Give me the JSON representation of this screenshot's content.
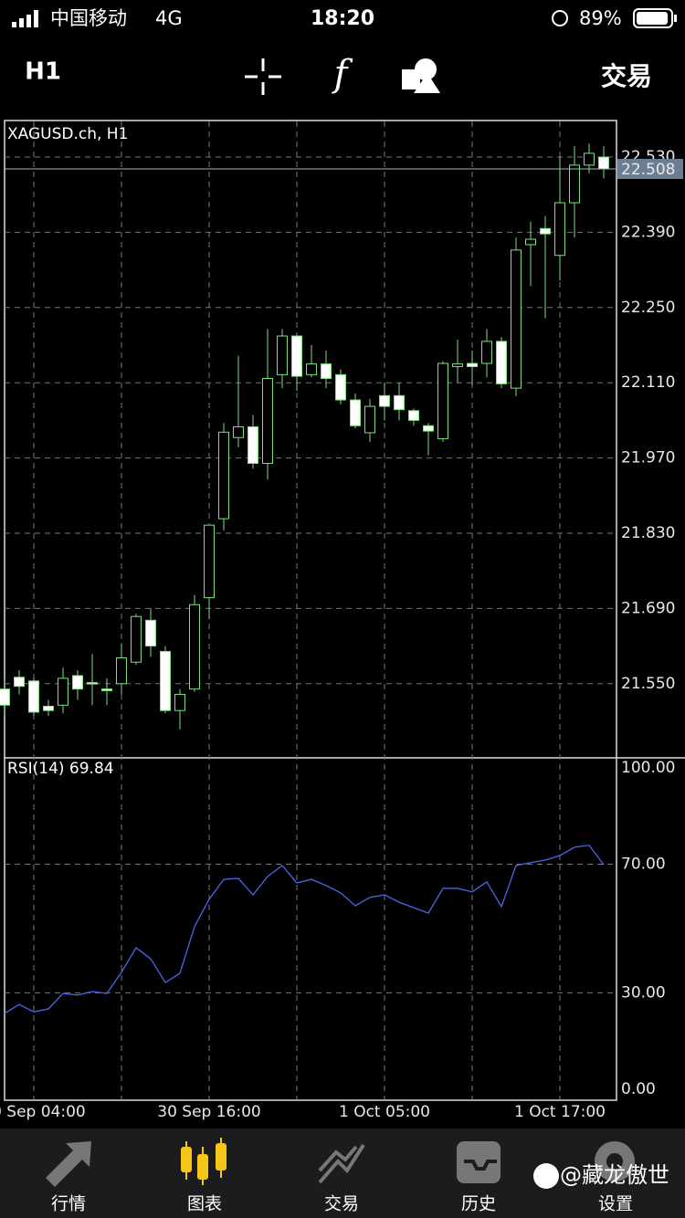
{
  "status_bar": {
    "carrier": "中国移动",
    "network": "4G",
    "time": "18:20",
    "battery": "89%"
  },
  "toolbar": {
    "timeframe": "H1",
    "trade": "交易"
  },
  "chart_data": [
    {
      "type": "candlestick",
      "title": "XAGUSD.ch, H1",
      "categories": [
        null,
        null,
        "30 Sep 04:00",
        null,
        null,
        null,
        null,
        null,
        null,
        null,
        null,
        null,
        null,
        null,
        "30 Sep 16:00",
        null,
        null,
        null,
        null,
        null,
        null,
        null,
        null,
        null,
        null,
        null,
        "1 Oct 05:00",
        null,
        null,
        null,
        null,
        null,
        null,
        null,
        null,
        null,
        null,
        null,
        "1 Oct 17:00",
        null,
        null,
        null
      ],
      "open": [
        21.54,
        21.562,
        21.555,
        21.508,
        21.51,
        21.565,
        21.552,
        21.54,
        21.55,
        21.59,
        21.668,
        21.61,
        21.5,
        21.54,
        21.71,
        21.857,
        22.008,
        22.028,
        21.96,
        22.125,
        22.197,
        22.125,
        22.145,
        22.125,
        22.078,
        22.017,
        22.086,
        22.086,
        22.058,
        22.03,
        22.006,
        22.14,
        22.146,
        22.146,
        22.187,
        22.1,
        22.367,
        22.397,
        22.347,
        22.445,
        22.515,
        22.53
      ],
      "high": [
        21.56,
        21.575,
        21.56,
        21.52,
        21.58,
        21.575,
        21.605,
        21.56,
        21.625,
        21.68,
        21.69,
        21.62,
        21.54,
        21.715,
        21.845,
        22.035,
        22.16,
        22.05,
        22.21,
        22.21,
        22.2,
        22.18,
        22.17,
        22.135,
        22.09,
        22.08,
        22.11,
        22.11,
        22.062,
        22.035,
        22.15,
        22.19,
        22.17,
        22.21,
        22.195,
        22.38,
        22.41,
        22.42,
        22.53,
        22.55,
        22.555,
        22.55
      ],
      "low": [
        21.49,
        21.53,
        21.49,
        21.49,
        21.495,
        21.52,
        21.51,
        21.51,
        21.53,
        21.585,
        21.6,
        21.495,
        21.465,
        21.535,
        21.67,
        21.835,
        21.99,
        21.95,
        21.93,
        22.1,
        22.095,
        22.12,
        22.1,
        22.07,
        22.025,
        22.0,
        22.04,
        22.04,
        22.03,
        21.975,
        22.0,
        22.11,
        22.105,
        22.12,
        22.1,
        22.085,
        22.29,
        22.23,
        22.3,
        22.38,
        22.5,
        22.49
      ],
      "close": [
        21.51,
        21.545,
        21.497,
        21.5,
        21.56,
        21.54,
        21.55,
        21.537,
        21.598,
        21.675,
        21.62,
        21.5,
        21.53,
        21.697,
        21.845,
        22.018,
        22.028,
        21.96,
        22.118,
        22.197,
        22.122,
        22.145,
        22.118,
        22.078,
        22.03,
        22.066,
        22.066,
        22.06,
        22.04,
        22.02,
        22.146,
        22.145,
        22.14,
        22.187,
        22.108,
        22.357,
        22.377,
        22.387,
        22.445,
        22.515,
        22.537,
        22.508
      ],
      "ylim": [
        21.412,
        22.598
      ],
      "yticks": [
        {
          "value": 22.53,
          "label": "22.530"
        },
        {
          "value": 22.39,
          "label": "22.390"
        },
        {
          "value": 22.25,
          "label": "22.250"
        },
        {
          "value": 22.11,
          "label": "22.110"
        },
        {
          "value": 21.97,
          "label": "21.970"
        },
        {
          "value": 21.83,
          "label": "21.830"
        },
        {
          "value": 21.69,
          "label": "21.690"
        },
        {
          "value": 21.55,
          "label": "21.550"
        }
      ],
      "last_price": 22.508,
      "grid": true,
      "up_color": "#000000",
      "down_color": "#ffffff",
      "wick_color": "#7ee07e"
    },
    {
      "type": "line",
      "title": "RSI(14) 69.84",
      "series": [
        {
          "color": "#4a68e8",
          "values": [
            23.6,
            26.4,
            24.1,
            25.0,
            29.8,
            29.3,
            30.4,
            29.8,
            36.4,
            44.0,
            40.6,
            33.2,
            36.1,
            50.6,
            59.1,
            65.3,
            65.6,
            60.5,
            66.2,
            69.6,
            64.2,
            65.3,
            63.4,
            61.1,
            57.1,
            59.7,
            60.5,
            58.2,
            56.5,
            54.8,
            62.5,
            62.5,
            61.4,
            64.5,
            56.8,
            69.6,
            70.5,
            71.3,
            72.7,
            75.3,
            75.9,
            69.84
          ]
        }
      ],
      "ylim": [
        -3.4,
        103.1
      ],
      "yticks": [
        {
          "value": 100,
          "label": "100.00"
        },
        {
          "value": 70,
          "label": "70.00"
        },
        {
          "value": 30,
          "label": "30.00"
        },
        {
          "value": 0,
          "label": "0.00"
        }
      ],
      "levels": [
        70,
        30
      ]
    }
  ],
  "tab_bar": {
    "tabs": [
      "行情",
      "图表",
      "交易",
      "历史",
      "设置"
    ],
    "active": 1
  },
  "watermark": "@藏龙傲世"
}
